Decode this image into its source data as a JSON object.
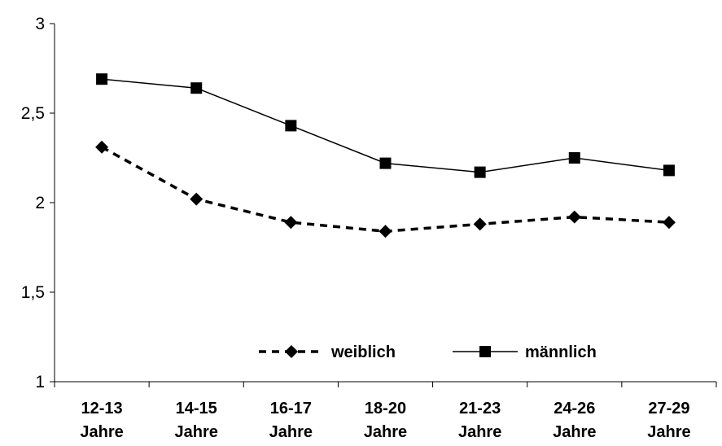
{
  "chart_data": {
    "type": "line",
    "title": "",
    "xlabel": "",
    "ylabel": "",
    "categories": [
      [
        "12-13",
        "Jahre"
      ],
      [
        "14-15",
        "Jahre"
      ],
      [
        "16-17",
        "Jahre"
      ],
      [
        "18-20",
        "Jahre"
      ],
      [
        "21-23",
        "Jahre"
      ],
      [
        "24-26",
        "Jahre"
      ],
      [
        "27-29",
        "Jahre"
      ]
    ],
    "ylim": [
      1,
      3
    ],
    "yticks": [
      1,
      1.5,
      2,
      2.5,
      3
    ],
    "ytick_labels": [
      "1",
      "1,5",
      "2",
      "2,5",
      "3"
    ],
    "grid": false,
    "legend_position": "inside-bottom-center",
    "series": [
      {
        "name": "weiblich",
        "line_style": "dashed",
        "marker": "diamond",
        "color": "#000000",
        "values": [
          2.31,
          2.02,
          1.89,
          1.84,
          1.88,
          1.92,
          1.89
        ]
      },
      {
        "name": "männlich",
        "line_style": "solid",
        "marker": "square",
        "color": "#000000",
        "values": [
          2.69,
          2.64,
          2.43,
          2.22,
          2.17,
          2.25,
          2.18
        ]
      }
    ]
  }
}
